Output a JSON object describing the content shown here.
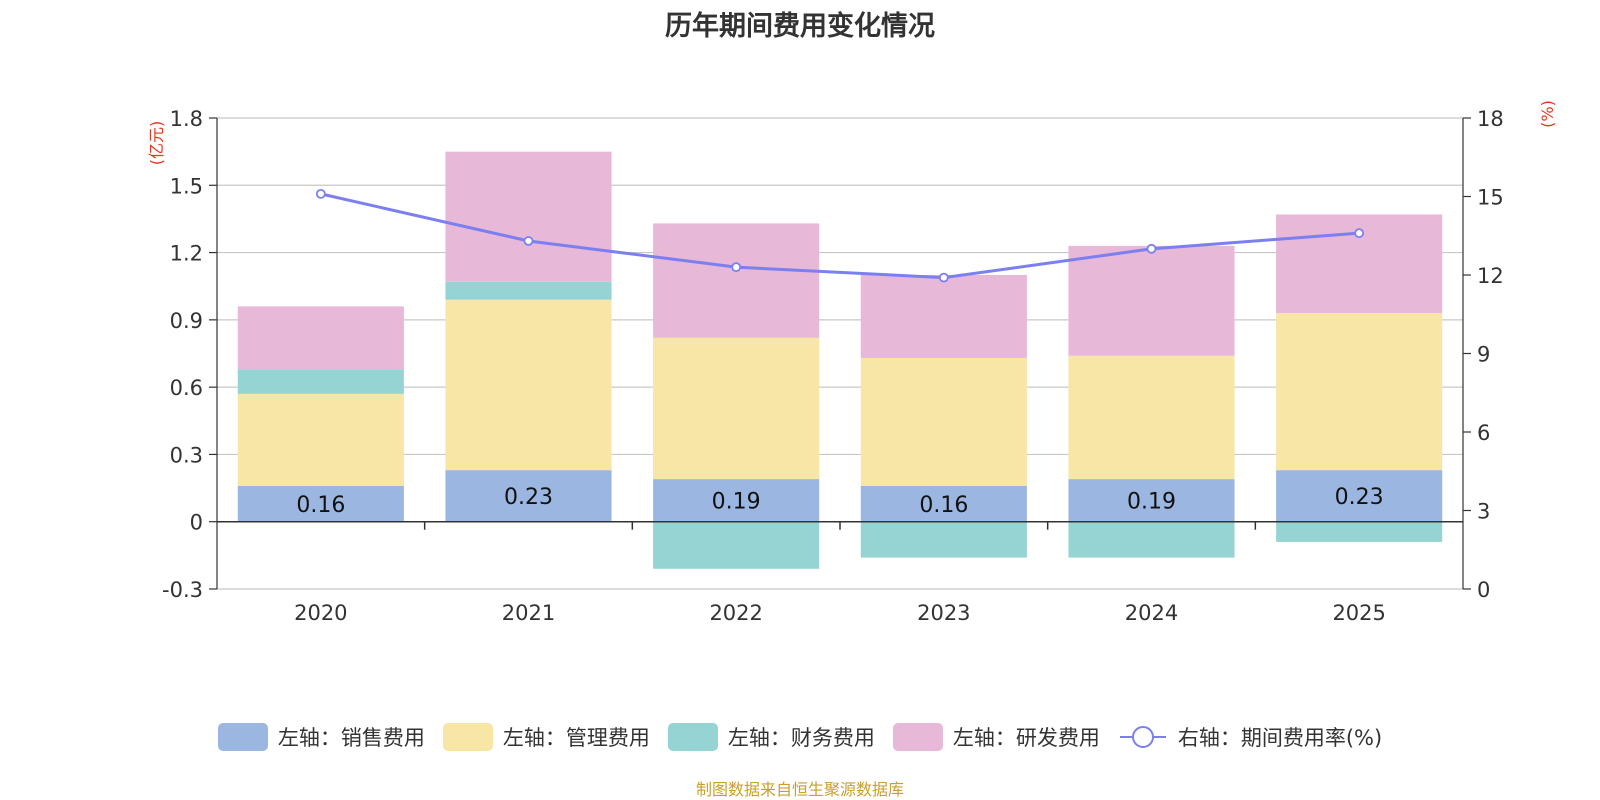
{
  "chart_data": {
    "type": "bar",
    "title": "历年期间费用变化情况",
    "categories": [
      "2020",
      "2021",
      "2022",
      "2023",
      "2024",
      "2025"
    ],
    "series": [
      {
        "name": "左轴：销售费用",
        "axis": "left",
        "color": "#9bb6e0",
        "values": [
          0.16,
          0.23,
          0.19,
          0.16,
          0.19,
          0.23
        ]
      },
      {
        "name": "左轴：管理费用",
        "axis": "left",
        "color": "#f8e6a7",
        "values": [
          0.41,
          0.76,
          0.63,
          0.57,
          0.55,
          0.7
        ]
      },
      {
        "name": "左轴：财务费用",
        "axis": "left",
        "color": "#96d4d4",
        "values": [
          0.11,
          0.08,
          -0.21,
          -0.16,
          -0.16,
          -0.09
        ]
      },
      {
        "name": "左轴：研发费用",
        "axis": "left",
        "color": "#e8b8d9",
        "values": [
          0.28,
          0.58,
          0.51,
          0.37,
          0.49,
          0.44
        ]
      },
      {
        "name": "右轴：期间费用率(%)",
        "axis": "right",
        "type": "line",
        "color": "#7b7ff0",
        "values": [
          15.1,
          13.3,
          12.3,
          11.9,
          13.0,
          13.6
        ]
      }
    ],
    "data_labels": [
      "0.16",
      "0.23",
      "0.19",
      "0.16",
      "0.19",
      "0.23"
    ],
    "left_axis": {
      "label": "(亿元)",
      "ylim": [
        -0.3,
        1.8
      ],
      "ticks": [
        -0.3,
        0,
        0.3,
        0.6,
        0.9,
        1.2,
        1.5,
        1.8
      ],
      "tick_labels": [
        "-0.3",
        "0",
        "0.3",
        "0.6",
        "0.9",
        "1.2",
        "1.5",
        "1.8"
      ]
    },
    "right_axis": {
      "label": "(%)",
      "ylim": [
        0,
        18
      ],
      "ticks": [
        0,
        3,
        6,
        9,
        12,
        15,
        18
      ],
      "tick_labels": [
        "0",
        "3",
        "6",
        "9",
        "12",
        "15",
        "18"
      ]
    },
    "grid": true,
    "legend_position": "bottom"
  },
  "source": "制图数据来自恒生聚源数据库",
  "colors": {
    "axis_label": "#e8341c",
    "source": "#c8a02c"
  }
}
